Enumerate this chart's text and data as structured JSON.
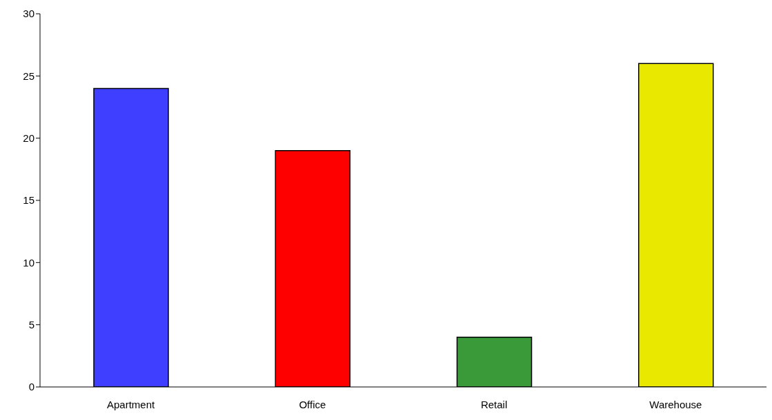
{
  "chart_data": {
    "type": "bar",
    "categories": [
      "Apartment",
      "Office",
      "Retail",
      "Warehouse"
    ],
    "values": [
      24,
      19,
      4,
      26
    ],
    "colors": [
      "#3f3fff",
      "#ff0000",
      "#3a9a3a",
      "#e8e800"
    ],
    "ylim": [
      0,
      30
    ],
    "yticks": [
      0,
      5,
      10,
      15,
      20,
      25,
      30
    ],
    "grid": false
  }
}
